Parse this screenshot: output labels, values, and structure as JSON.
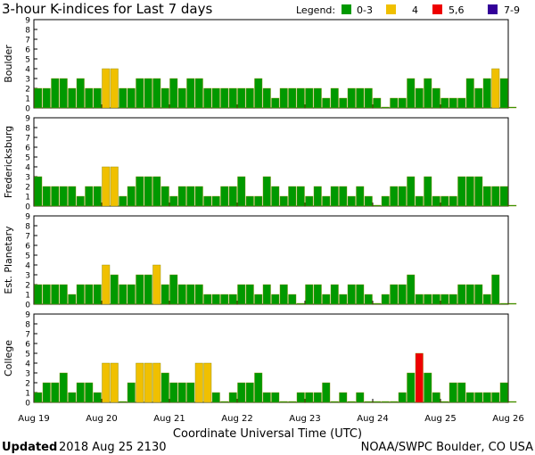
{
  "chart_data": {
    "type": "bar",
    "title": "3-hour K-indices for Last 7 days",
    "xlabel": "Coordinate Universal Time (UTC)",
    "x_ticks": [
      "Aug 19",
      "Aug 20",
      "Aug 21",
      "Aug 22",
      "Aug 23",
      "Aug 24",
      "Aug 25",
      "Aug 26"
    ],
    "ylim": [
      0,
      9
    ],
    "y_ticks": [
      "0",
      "1",
      "2",
      "3",
      "4",
      "5",
      "6",
      "7",
      "8",
      "9"
    ],
    "legend": {
      "title": "Legend:",
      "placement": "top-right",
      "entries": [
        {
          "label": "0-3",
          "color": "#009900"
        },
        {
          "label": "4",
          "color": "#f0c000"
        },
        {
          "label": "5,6",
          "color": "#ee0000"
        },
        {
          "label": "7-9",
          "color": "#330099"
        }
      ]
    },
    "panels": [
      {
        "name": "Boulder",
        "values": [
          2,
          2,
          3,
          3,
          2,
          3,
          2,
          2,
          4,
          4,
          2,
          2,
          3,
          3,
          3,
          2,
          3,
          2,
          3,
          3,
          2,
          2,
          2,
          2,
          2,
          2,
          3,
          2,
          1,
          2,
          2,
          2,
          2,
          2,
          1,
          2,
          1,
          2,
          2,
          2,
          1,
          0,
          1,
          1,
          3,
          2,
          3,
          2,
          1,
          1,
          1,
          3,
          2,
          3,
          4,
          3,
          0
        ]
      },
      {
        "name": "Fredericksburg",
        "values": [
          3,
          2,
          2,
          2,
          2,
          1,
          2,
          2,
          4,
          4,
          1,
          2,
          3,
          3,
          3,
          2,
          1,
          2,
          2,
          2,
          1,
          1,
          2,
          2,
          3,
          1,
          1,
          3,
          2,
          1,
          2,
          2,
          1,
          2,
          1,
          2,
          2,
          1,
          2,
          1,
          0,
          1,
          2,
          2,
          3,
          1,
          3,
          1,
          1,
          1,
          3,
          3,
          3,
          2,
          2,
          2,
          0
        ]
      },
      {
        "name": "Est. Planetary",
        "values": [
          2,
          2,
          2,
          2,
          1,
          2,
          2,
          2,
          4,
          3,
          2,
          2,
          3,
          3,
          4,
          2,
          3,
          2,
          2,
          2,
          1,
          1,
          1,
          1,
          2,
          2,
          1,
          2,
          1,
          2,
          1,
          0,
          2,
          2,
          1,
          2,
          1,
          2,
          2,
          1,
          0,
          1,
          2,
          2,
          3,
          1,
          1,
          1,
          1,
          1,
          2,
          2,
          2,
          1,
          3,
          0,
          0
        ]
      },
      {
        "name": "College",
        "values": [
          1,
          2,
          2,
          3,
          1,
          2,
          2,
          1,
          4,
          4,
          0,
          2,
          4,
          4,
          4,
          3,
          2,
          2,
          2,
          4,
          4,
          1,
          0,
          1,
          2,
          2,
          3,
          1,
          1,
          0,
          0,
          1,
          1,
          1,
          2,
          0,
          1,
          0,
          1,
          0,
          0,
          0,
          0,
          1,
          3,
          5,
          3,
          1,
          0,
          2,
          2,
          1,
          1,
          1,
          1,
          2,
          0
        ]
      }
    ]
  },
  "footer": {
    "updated_label": "Updated",
    "updated_value": "2018 Aug 25 2130",
    "credit": "NOAA/SWPC Boulder, CO USA"
  }
}
